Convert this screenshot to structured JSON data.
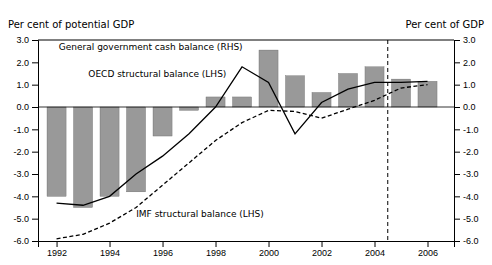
{
  "chart_data": {
    "type": "bar",
    "ylabel": "Per cent of potential GDP",
    "y2label": "Per cent of GDP",
    "x": [
      1992,
      1993,
      1994,
      1995,
      1996,
      1997,
      1998,
      1999,
      2000,
      2001,
      2002,
      2003,
      2004,
      2005,
      2006
    ],
    "series": [
      {
        "name": "General government cash balance (RHS)",
        "type": "bar",
        "axis": "y2",
        "color": "#999999",
        "values": [
          -4.0,
          -4.5,
          -4.0,
          -3.8,
          -1.3,
          -0.15,
          0.45,
          0.45,
          2.55,
          1.4,
          0.65,
          1.5,
          1.8,
          1.25,
          1.15
        ]
      },
      {
        "name": "OECD structural balance (LHS)",
        "type": "line",
        "line_style": "solid",
        "color": "#000000",
        "values": [
          -4.3,
          -4.4,
          -4.0,
          -3.0,
          -2.2,
          -1.2,
          0.0,
          1.8,
          1.1,
          -1.2,
          0.2,
          0.8,
          1.1,
          1.1,
          1.15
        ]
      },
      {
        "name": "IMF structural balance (LHS)",
        "type": "line",
        "line_style": "dashed",
        "color": "#000000",
        "values": [
          -5.9,
          -5.7,
          -5.2,
          -4.5,
          -3.5,
          -2.5,
          -1.5,
          -0.7,
          -0.15,
          -0.2,
          -0.5,
          -0.1,
          0.3,
          0.85,
          1.0
        ]
      }
    ],
    "xlim": [
      1991.3,
      2007.0
    ],
    "xticks": [
      1992,
      1994,
      1996,
      1998,
      2000,
      2002,
      2004,
      2006
    ],
    "ylim": [
      -6.0,
      3.0
    ],
    "yticks": [
      {
        "value": -6.0,
        "label": "-6.0"
      },
      {
        "value": -5.0,
        "label": "-5.0"
      },
      {
        "value": -4.0,
        "label": "-4.0"
      },
      {
        "value": -3.0,
        "label": "-3.0"
      },
      {
        "value": -2.0,
        "label": "-2.0"
      },
      {
        "value": -1.0,
        "label": "-1.0"
      },
      {
        "value": 0.0,
        "label": "0.0"
      },
      {
        "value": 1.0,
        "label": "1.0"
      },
      {
        "value": 2.0,
        "label": "2.0"
      },
      {
        "value": 3.0,
        "label": "3.0"
      }
    ],
    "y2lim": [
      -6.0,
      3.0
    ],
    "y2ticks": [
      {
        "value": -6.0,
        "label": "-6.0"
      },
      {
        "value": -5.0,
        "label": "-5.0"
      },
      {
        "value": -4.0,
        "label": "-4.0"
      },
      {
        "value": -3.0,
        "label": "-3.0"
      },
      {
        "value": -2.0,
        "label": "-2.0"
      },
      {
        "value": -1.0,
        "label": "-1.0"
      },
      {
        "value": 0.0,
        "label": "0.0"
      },
      {
        "value": 1.0,
        "label": "1.0"
      },
      {
        "value": 2.0,
        "label": "2.0"
      },
      {
        "value": 3.0,
        "label": "3.0"
      }
    ],
    "reference_lines": [
      {
        "x": 2004.5,
        "line_style": "dashed",
        "color": "#000000"
      },
      {
        "y": 0.0,
        "line_style": "solid",
        "color": "#000000"
      }
    ]
  }
}
